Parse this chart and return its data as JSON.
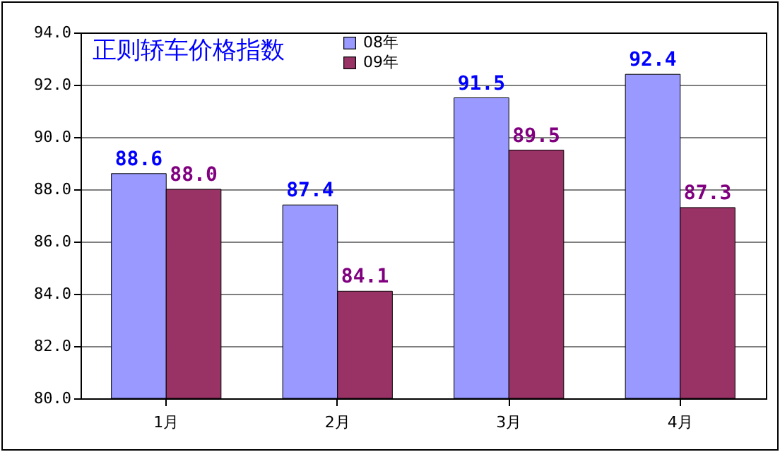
{
  "chart_data": {
    "type": "bar",
    "title": "正则轿车价格指数",
    "categories": [
      "1月",
      "2月",
      "3月",
      "4月"
    ],
    "series": [
      {
        "name": "08年",
        "color": "#9999ff",
        "values": [
          88.6,
          87.4,
          91.5,
          92.4
        ],
        "value_labels": [
          "88.6",
          "87.4",
          "91.5",
          "92.4"
        ]
      },
      {
        "name": "09年",
        "color": "#993366",
        "values": [
          88.0,
          84.1,
          89.5,
          87.3
        ],
        "value_labels": [
          "88.0",
          "84.1",
          "89.5",
          "87.3"
        ]
      }
    ],
    "ylim": [
      80,
      94
    ],
    "yticks": [
      {
        "value": 80,
        "label": "80.0"
      },
      {
        "value": 82,
        "label": "82.0"
      },
      {
        "value": 84,
        "label": "84.0"
      },
      {
        "value": 86,
        "label": "86.0"
      },
      {
        "value": 88,
        "label": "88.0"
      },
      {
        "value": 90,
        "label": "90.0"
      },
      {
        "value": 92,
        "label": "92.0"
      },
      {
        "value": 94,
        "label": "94.0"
      }
    ],
    "grid": "y",
    "legend": "top"
  }
}
